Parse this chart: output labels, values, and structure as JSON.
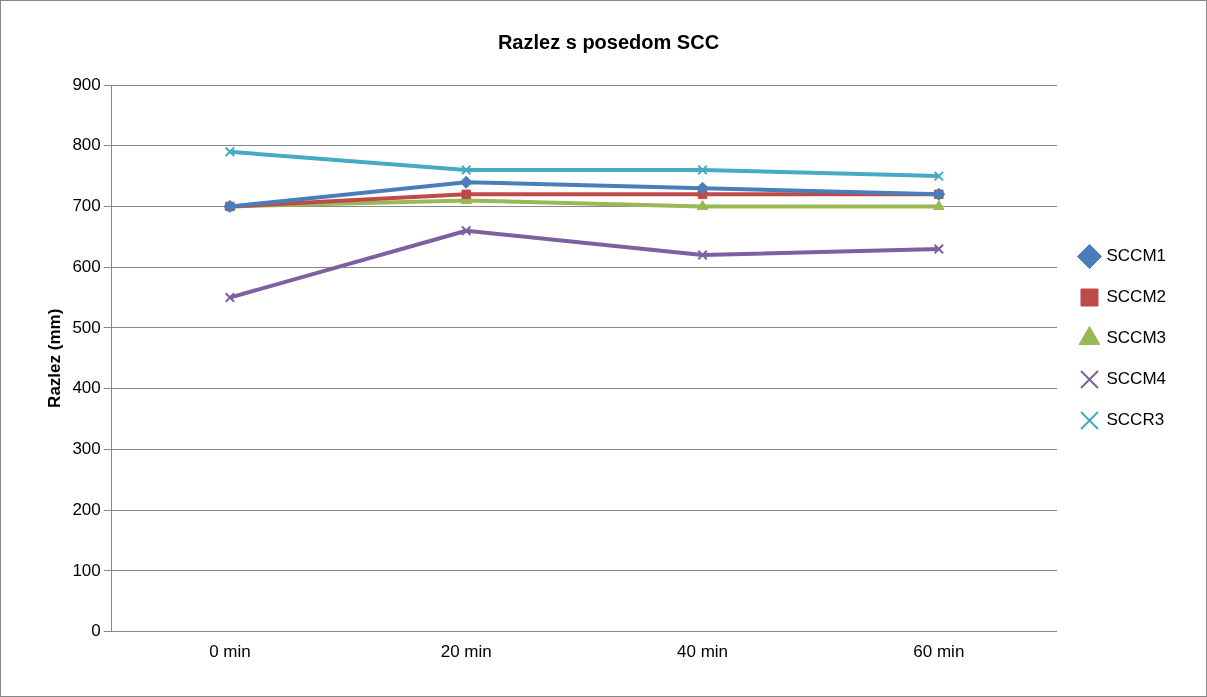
{
  "chart_data": {
    "type": "line",
    "title": "Razlez s posedom SCC",
    "ylabel": "Razlez (mm)",
    "categories": [
      "0 min",
      "20 min",
      "40 min",
      "60 min"
    ],
    "series": [
      {
        "name": "SCCM1",
        "color": "#4a7ebb",
        "marker": "diamond",
        "values": [
          700,
          740,
          730,
          720
        ]
      },
      {
        "name": "SCCM2",
        "color": "#be4b48",
        "marker": "square",
        "values": [
          700,
          720,
          720,
          720
        ]
      },
      {
        "name": "SCCM3",
        "color": "#98b954",
        "marker": "triangle",
        "values": [
          700,
          710,
          700,
          700
        ]
      },
      {
        "name": "SCCM4",
        "color": "#7d60a0",
        "marker": "cross",
        "values": [
          550,
          660,
          620,
          630
        ]
      },
      {
        "name": "SCCR3",
        "color": "#46aac5",
        "marker": "cross",
        "values": [
          790,
          760,
          760,
          750
        ]
      }
    ],
    "ylim": [
      0,
      900
    ],
    "yticks": [
      0,
      100,
      200,
      300,
      400,
      500,
      600,
      700,
      800,
      900
    ],
    "grid": "y",
    "legend": "right",
    "line_style": "solid"
  }
}
